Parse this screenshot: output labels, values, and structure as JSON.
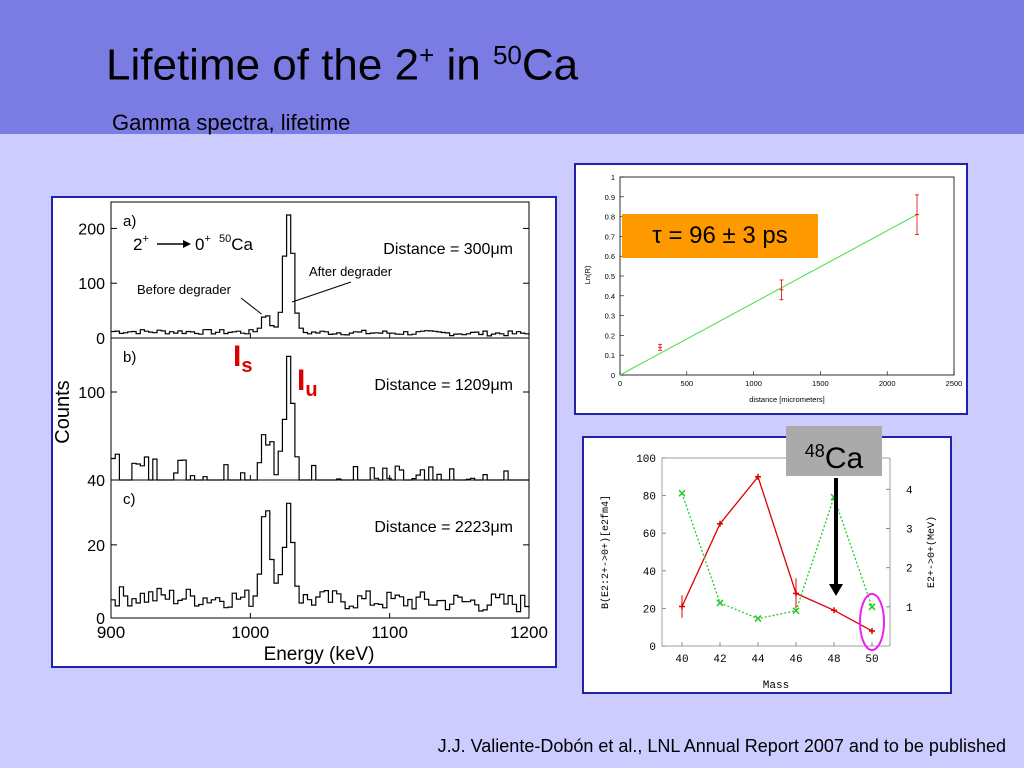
{
  "slide": {
    "title_main": "Lifetime of the 2",
    "title_sup1": "+",
    "title_mid": " in ",
    "title_sup2": "50",
    "title_end": "Ca",
    "subtitle": "Gamma spectra, lifetime",
    "citation": "J.J. Valiente-Dobón et al., LNL Annual Report 2007 and to be published",
    "tau_label": "τ = 96 ± 3 ps",
    "ca48_sup": "48",
    "ca48_text": "Ca"
  },
  "colors": {
    "header_bg": "#7b7be4",
    "slide_bg": "#ccccff",
    "tau_box": "#ff9900",
    "panel_border": "#2222aa"
  },
  "chart_data": [
    {
      "type": "line",
      "name": "gamma spectra",
      "xlabel": "Energy (keV)",
      "ylabel": "Counts",
      "x_ticks": [
        900,
        1000,
        1100,
        1200
      ],
      "xlim": [
        900,
        1200
      ],
      "panels": [
        {
          "tag": "a)",
          "distance": "Distance = 300μm",
          "yticks": [
            0,
            100,
            200
          ],
          "ylim": [
            0,
            230
          ],
          "reaction": {
            "from": "2",
            "from_sup": "+",
            "to": "0",
            "to_sup": "+",
            "nucleus_sup": "50",
            "nucleus": "Ca"
          },
          "annotations": [
            "Before degrader",
            "After degrader"
          ],
          "peaks": [
            {
              "x": 1010,
              "y": 45
            },
            {
              "x": 1026,
              "y": 230
            }
          ],
          "baseline": 12
        },
        {
          "tag": "b)",
          "distance": "Distance = 1209μm",
          "yticks": [
            40,
            100
          ],
          "ylim": [
            40,
            130
          ],
          "annotations": [
            "I",
            "s",
            "I",
            "u"
          ],
          "peaks": [
            {
              "x": 1010,
              "y": 86
            },
            {
              "x": 1026,
              "y": 118
            }
          ],
          "baseline": 46
        },
        {
          "tag": "c)",
          "distance": "Distance = 2223μm",
          "yticks": [
            0,
            20
          ],
          "ylim": [
            0,
            35
          ],
          "peaks": [
            {
              "x": 1010,
              "y": 34
            },
            {
              "x": 1026,
              "y": 32
            }
          ],
          "baseline": 6
        }
      ]
    },
    {
      "type": "scatter",
      "name": "decay curve",
      "xlabel": "distance  [micrometers]",
      "ylabel": "Ln(R)",
      "xlim": [
        0,
        2500
      ],
      "ylim": [
        0,
        1
      ],
      "x_ticks": [
        0,
        500,
        1000,
        1500,
        2000,
        2500
      ],
      "y_ticks": [
        "0",
        "0.1",
        "0.2",
        "0.3",
        "0.4",
        "0.5",
        "0.6",
        "0.7",
        "0.8",
        "0.9",
        "1"
      ],
      "points": [
        {
          "x": 300,
          "y": 0.14,
          "err": 0.015
        },
        {
          "x": 1209,
          "y": 0.43,
          "err": 0.05
        },
        {
          "x": 2223,
          "y": 0.81,
          "err": 0.1
        }
      ],
      "fit": {
        "x": [
          0,
          2223
        ],
        "y": [
          0.0,
          0.81
        ]
      }
    },
    {
      "type": "line",
      "name": "B(E2) and E systematics",
      "xlabel": "Mass",
      "ylabel_left": "B(E2:2+->0+)[e2fm4]",
      "ylabel_right": "E2+->0+(MeV)",
      "x_ticks": [
        "40",
        "42",
        "44",
        "46",
        "48",
        "50"
      ],
      "y_ticks_left": [
        "0",
        "20",
        "40",
        "60",
        "80",
        "100"
      ],
      "y_ticks_right": [
        "1",
        "2",
        "3",
        "4"
      ],
      "ylim_left": [
        0,
        100
      ],
      "ylim_right": [
        0,
        4.8
      ],
      "series": [
        {
          "axis": "left",
          "color": "#dd0000",
          "x": [
            40,
            42,
            44,
            46,
            48,
            50
          ],
          "y": [
            21,
            65,
            90,
            28,
            19,
            8
          ],
          "err": [
            6,
            0,
            0,
            8,
            0,
            0
          ]
        },
        {
          "axis": "right",
          "color": "#22cc22",
          "x": [
            40,
            42,
            44,
            46,
            48,
            50
          ],
          "y": [
            3.9,
            1.1,
            0.7,
            0.9,
            3.8,
            1.0
          ]
        }
      ]
    }
  ]
}
